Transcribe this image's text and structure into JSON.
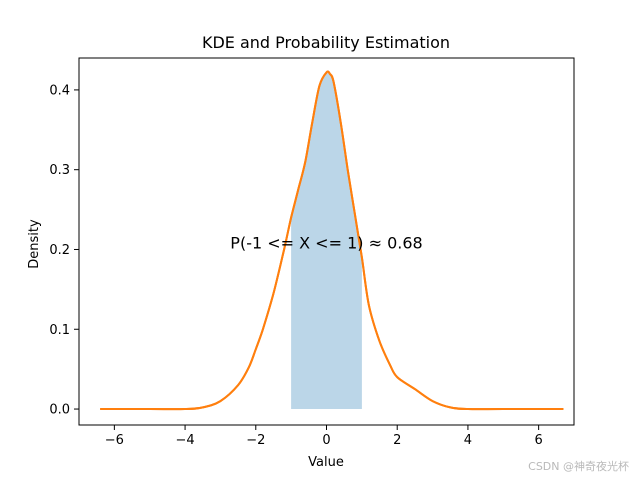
{
  "chart_data": {
    "type": "area",
    "title": "KDE and Probability Estimation",
    "xlabel": "Value",
    "ylabel": "Density",
    "xlim": [
      -7,
      7
    ],
    "ylim": [
      -0.02,
      0.44
    ],
    "xticks": [
      -6,
      -4,
      -2,
      0,
      2,
      4,
      6
    ],
    "xtick_labels": [
      "−6",
      "−4",
      "−2",
      "0",
      "2",
      "4",
      "6"
    ],
    "yticks": [
      0.0,
      0.1,
      0.2,
      0.3,
      0.4
    ],
    "ytick_labels": [
      "0.0",
      "0.1",
      "0.2",
      "0.3",
      "0.4"
    ],
    "grid": false,
    "series": [
      {
        "kind": "line",
        "color": "#ff7f0e",
        "x": [
          -6.4,
          -5.0,
          -4.0,
          -3.5,
          -3.0,
          -2.5,
          -2.2,
          -2.0,
          -1.8,
          -1.5,
          -1.2,
          -1.0,
          -0.8,
          -0.6,
          -0.4,
          -0.2,
          0.0,
          0.1,
          0.2,
          0.4,
          0.6,
          0.8,
          1.0,
          1.2,
          1.5,
          1.8,
          2.0,
          2.5,
          3.0,
          3.5,
          4.0,
          5.0,
          6.7
        ],
        "y": [
          0.0,
          0.0,
          0.0,
          0.002,
          0.01,
          0.03,
          0.052,
          0.075,
          0.1,
          0.145,
          0.2,
          0.24,
          0.275,
          0.31,
          0.36,
          0.405,
          0.422,
          0.42,
          0.41,
          0.36,
          0.3,
          0.245,
          0.19,
          0.13,
          0.085,
          0.055,
          0.04,
          0.025,
          0.01,
          0.002,
          0.0,
          0.0,
          0.0
        ]
      },
      {
        "kind": "line",
        "color": "#ff7f0e",
        "x": [
          -6.4,
          -5.0,
          -4.0,
          -3.5,
          -3.0,
          -2.5,
          -2.2,
          -2.0,
          -1.8,
          -1.5,
          -1.2,
          -1.0,
          -0.8,
          -0.6,
          -0.4,
          -0.2,
          0.0,
          0.1,
          0.2,
          0.4,
          0.6,
          0.8,
          1.0,
          1.2,
          1.5,
          1.8,
          2.0,
          2.5,
          3.0,
          3.5,
          4.0,
          5.0,
          6.7
        ],
        "y": [
          0.0,
          0.0,
          0.0,
          0.002,
          0.01,
          0.03,
          0.052,
          0.075,
          0.1,
          0.145,
          0.2,
          0.24,
          0.275,
          0.31,
          0.36,
          0.405,
          0.422,
          0.42,
          0.41,
          0.36,
          0.3,
          0.245,
          0.19,
          0.13,
          0.085,
          0.055,
          0.04,
          0.025,
          0.01,
          0.002,
          0.0,
          0.0,
          0.0
        ]
      }
    ],
    "shaded_region": {
      "x_from": -1,
      "x_to": 1,
      "color": "#1f77b4",
      "opacity": 0.3
    },
    "annotation": {
      "text": "P(-1 <= X <= 1) ≈ 0.68",
      "x": 0.0,
      "y": 0.2
    }
  },
  "watermark": "CSDN @神奇夜光杯"
}
